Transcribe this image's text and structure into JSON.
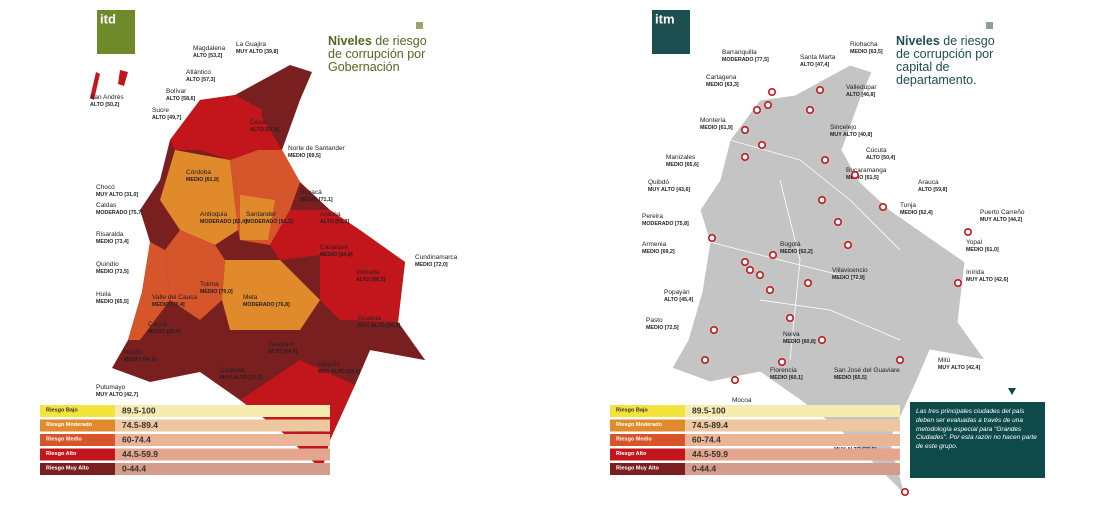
{
  "left": {
    "logo": "itd",
    "title_bold": "Niveles",
    "title_rest": "de riesgo de corrupción por Gobernación",
    "labels": [
      {
        "name": "San Andrés",
        "rating": "ALTO [50,2]"
      },
      {
        "name": "La Guajira",
        "rating": "MUY ALTO [39,8]"
      },
      {
        "name": "Magdalena",
        "rating": "ALTO [53,2]"
      },
      {
        "name": "Atlántico",
        "rating": "ALTO [57,3]"
      },
      {
        "name": "Bolívar",
        "rating": "ALTO [58,6]"
      },
      {
        "name": "Sucre",
        "rating": "ALTO [49,7]"
      },
      {
        "name": "Cesar",
        "rating": "ALTO [57,8]"
      },
      {
        "name": "Córdoba",
        "rating": "MEDIO [61,9]"
      },
      {
        "name": "Norte de Santander",
        "rating": "MEDIO [69,5]"
      },
      {
        "name": "Chocó",
        "rating": "MUY ALTO [31,0]"
      },
      {
        "name": "Caldas",
        "rating": "MODERADO [75,7]"
      },
      {
        "name": "Antioquia",
        "rating": "MODERADO [82,4]"
      },
      {
        "name": "Santander",
        "rating": "MODERADO [81,2]"
      },
      {
        "name": "Boyacá",
        "rating": "MEDIO [71,1]"
      },
      {
        "name": "Arauca",
        "rating": "ALTO [51,2]"
      },
      {
        "name": "Risaralda",
        "rating": "MEDIO [73,4]"
      },
      {
        "name": "Casanare",
        "rating": "MEDIO [64,9]"
      },
      {
        "name": "Cundinamarca",
        "rating": "MEDIO [72,0]"
      },
      {
        "name": "Quindío",
        "rating": "MEDIO [73,5]"
      },
      {
        "name": "Vichada",
        "rating": "ALTO [56,3]"
      },
      {
        "name": "Huila",
        "rating": "MEDIO [65,5]"
      },
      {
        "name": "Valle del Cauca",
        "rating": "MEDIO [70,4]"
      },
      {
        "name": "Tolima",
        "rating": "MEDIO [70,0]"
      },
      {
        "name": "Meta",
        "rating": "MODERADO [76,8]"
      },
      {
        "name": "Cauca",
        "rating": "MEDIO [60,9]"
      },
      {
        "name": "Guainía",
        "rating": "MUY ALTO [34,2]"
      },
      {
        "name": "Nariño",
        "rating": "MEDIO [64,0]"
      },
      {
        "name": "Guaviare",
        "rating": "ALTO [54,8]"
      },
      {
        "name": "Caquetá",
        "rating": "MUY ALTO [37,0]"
      },
      {
        "name": "Vaupés",
        "rating": "MUY ALTO [32,4]"
      },
      {
        "name": "Putumayo",
        "rating": "MUY ALTO [42,7]"
      },
      {
        "name": "Amazonas",
        "rating": "ALTO [48,0]"
      }
    ]
  },
  "right": {
    "logo": "itm",
    "title_bold": "Niveles",
    "title_rest": "de riesgo de corrupción por capital de departamento.",
    "labels": [
      {
        "name": "Barranquilla",
        "rating": "MODERADO [77,5]"
      },
      {
        "name": "Santa Marta",
        "rating": "ALTO [47,4]"
      },
      {
        "name": "Riohacha",
        "rating": "MEDIO [63,5]"
      },
      {
        "name": "Cartagena",
        "rating": "MEDIO [63,3]"
      },
      {
        "name": "Valledupar",
        "rating": "ALTO [46,8]"
      },
      {
        "name": "Montería",
        "rating": "MEDIO [61,9]"
      },
      {
        "name": "Sincelejo",
        "rating": "MUY ALTO [40,8]"
      },
      {
        "name": "Manizales",
        "rating": "MEDIO [65,6]"
      },
      {
        "name": "Cúcuta",
        "rating": "ALTO [50,4]"
      },
      {
        "name": "Bucaramanga",
        "rating": "MEDIO [61,5]"
      },
      {
        "name": "Arauca",
        "rating": "ALTO [59,8]"
      },
      {
        "name": "Quibdó",
        "rating": "MUY ALTO [43,6]"
      },
      {
        "name": "Tunja",
        "rating": "MEDIO [62,4]"
      },
      {
        "name": "Puerto Carreño",
        "rating": "MUY ALTO [44,2]"
      },
      {
        "name": "Pereira",
        "rating": "MODERADO [75,8]"
      },
      {
        "name": "Bogotá",
        "rating": "MEDIO [62,2]"
      },
      {
        "name": "Yopal",
        "rating": "MEDIO [61,0]"
      },
      {
        "name": "Armenia",
        "rating": "MEDIO [69,2]"
      },
      {
        "name": "Villavicencio",
        "rating": "MEDIO [72,9]"
      },
      {
        "name": "Inírida",
        "rating": "MUY ALTO [42,6]"
      },
      {
        "name": "Popayán",
        "rating": "ALTO [45,4]"
      },
      {
        "name": "Pasto",
        "rating": "MEDIO [72,5]"
      },
      {
        "name": "Neiva",
        "rating": "MEDIO [60,8]"
      },
      {
        "name": "Mitú",
        "rating": "MUY ALTO [42,4]"
      },
      {
        "name": "Florencia",
        "rating": "MEDIO [60,1]"
      },
      {
        "name": "San José del Guaviare",
        "rating": "MEDIO [65,5]"
      },
      {
        "name": "Mocoa",
        "rating": "ALTO [47,0]"
      },
      {
        "name": "Leticia",
        "rating": "MUY ALTO [37,5]"
      }
    ],
    "note": "Las tres principales ciudades del país deben ser evaluadas a través de una metodología especial para \"Grandes Ciudades\". Por esta razón no hacen parte de este grupo."
  },
  "legend": [
    {
      "label": "Riesgo Bajo",
      "range": "89.5-100",
      "color": "#f2e33d"
    },
    {
      "label": "Riesgo Moderado",
      "range": "74.5-89.4",
      "color": "#e08a2c"
    },
    {
      "label": "Riesgo Medio",
      "range": "60-74.4",
      "color": "#d6552a"
    },
    {
      "label": "Riesgo Alto",
      "range": "44.5-59.9",
      "color": "#c3161c"
    },
    {
      "label": "Riesgo Muy Alto",
      "range": "0-44.4",
      "color": "#7a1f1f"
    }
  ]
}
